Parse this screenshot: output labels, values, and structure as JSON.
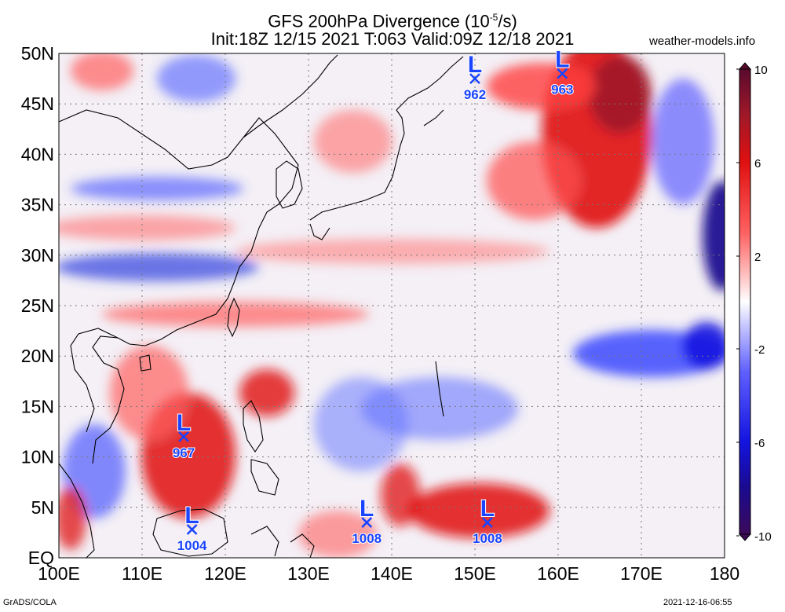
{
  "header": {
    "title_line1": "GFS 200hPa Divergence (10",
    "title_exp": "-5",
    "title_unit": "/s)",
    "title_line2": "Init:18Z 12/15 2021 T:063 Valid:09Z 12/18 2021",
    "site": "weather-models.info"
  },
  "map": {
    "lon_range": [
      100,
      180
    ],
    "lat_range": [
      0,
      50
    ],
    "lat_labels": [
      "50N",
      "45N",
      "40N",
      "35N",
      "30N",
      "25N",
      "20N",
      "15N",
      "10N",
      "5N",
      "EQ"
    ],
    "lon_labels": [
      "100E",
      "110E",
      "120E",
      "130E",
      "140E",
      "150E",
      "160E",
      "170E",
      "180"
    ],
    "lows": [
      {
        "label": "L",
        "pressure": "962",
        "lon": 150.0,
        "lat": 47.5
      },
      {
        "label": "L",
        "pressure": "963",
        "lon": 160.5,
        "lat": 48.0
      },
      {
        "label": "L",
        "pressure": "967",
        "lon": 115.0,
        "lat": 12.0
      },
      {
        "label": "L",
        "pressure": "1004",
        "lon": 116.0,
        "lat": 2.8
      },
      {
        "label": "L",
        "pressure": "1008",
        "lon": 137.0,
        "lat": 3.5
      },
      {
        "label": "L",
        "pressure": "1008",
        "lon": 151.5,
        "lat": 3.5
      }
    ]
  },
  "colorbar": {
    "labels": [
      "10",
      "6",
      "2",
      "-2",
      "-6",
      "-10"
    ],
    "colors": [
      "#5a0a2e",
      "#a01828",
      "#e01010",
      "#ff6060",
      "#ffc8c8",
      "#ffffff",
      "#c8c8ff",
      "#6060ff",
      "#1414e0",
      "#1a0a90",
      "#3c0a5a"
    ]
  },
  "footer": {
    "left": "GrADS/COLA",
    "right": "2021-12-16-06:55"
  }
}
